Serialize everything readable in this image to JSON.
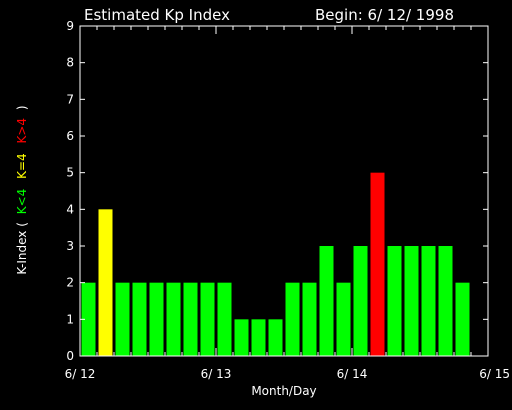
{
  "chart_data": {
    "type": "bar",
    "title": "Estimated Kp Index",
    "begin_label": "Begin: 6/ 12/ 1998",
    "xlabel": "Month/Day",
    "ylabel": {
      "prefix": "K-Index (",
      "low": "K<4",
      "mid": "K=4",
      "high": "K>4",
      "suffix": ")"
    },
    "ylim": [
      0,
      9
    ],
    "yticks": [
      0,
      1,
      2,
      3,
      4,
      5,
      6,
      7,
      8,
      9
    ],
    "x_range": [
      0,
      24
    ],
    "x_tick_labels": [
      {
        "x": 0,
        "label": "6/ 12"
      },
      {
        "x": 8,
        "label": "6/ 13"
      },
      {
        "x": 16,
        "label": "6/ 14"
      },
      {
        "x": 24,
        "label": "6/ 15"
      }
    ],
    "values": [
      2,
      4,
      2,
      2,
      2,
      2,
      2,
      2,
      2,
      1,
      1,
      1,
      2,
      2,
      3,
      2,
      3,
      5,
      3,
      3,
      3,
      3,
      2
    ],
    "colors": {
      "low": "#00ff00",
      "mid": "#ffff00",
      "high": "#ff0000",
      "axis": "#ffffff",
      "background": "#000000"
    }
  }
}
